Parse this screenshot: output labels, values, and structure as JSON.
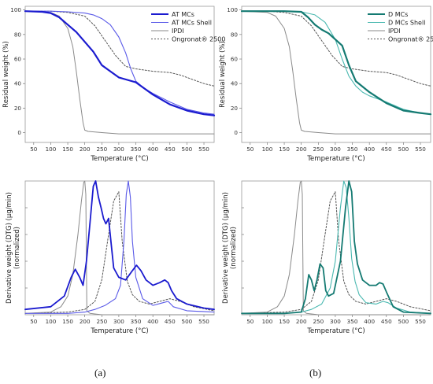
{
  "figure": {
    "label_a": "(a)",
    "label_b": "(b)"
  },
  "chart_data": [
    {
      "type": "line",
      "panel": "top-left",
      "xlabel": "Temperature (°C)",
      "ylabel": "Residual weight (%)",
      "xlim": [
        25,
        580
      ],
      "ylim": [
        -8,
        103
      ],
      "xticks": [
        50,
        100,
        150,
        200,
        250,
        300,
        350,
        400,
        450,
        500,
        550
      ],
      "yticks": [
        0,
        20,
        40,
        60,
        80,
        100
      ],
      "legend_position": "top-right",
      "series": [
        {
          "name": "AT MCs",
          "color": "#1b1bcf",
          "width": 2.2,
          "dash": "",
          "x": [
            25,
            75,
            100,
            125,
            150,
            175,
            200,
            225,
            250,
            275,
            300,
            325,
            350,
            400,
            450,
            500,
            550,
            580
          ],
          "y": [
            99,
            98.5,
            97.5,
            94,
            88,
            82,
            74,
            66,
            55,
            50,
            45,
            43,
            41,
            31,
            23,
            18,
            15,
            14
          ]
        },
        {
          "name": "AT MCs Shell",
          "color": "#5a5ae8",
          "width": 1.1,
          "dash": "",
          "x": [
            25,
            100,
            150,
            200,
            225,
            250,
            275,
            300,
            320,
            335,
            350,
            375,
            400,
            450,
            500,
            550,
            580
          ],
          "y": [
            99,
            99,
            98.5,
            97.5,
            96,
            93,
            88,
            78,
            65,
            52,
            42,
            36,
            32,
            25,
            19,
            16,
            15
          ]
        },
        {
          "name": "IPDI",
          "color": "#8a8a8a",
          "width": 1.0,
          "dash": "",
          "x": [
            25,
            100,
            125,
            150,
            165,
            175,
            185,
            195,
            200,
            210,
            250,
            300,
            400,
            500,
            580
          ],
          "y": [
            99,
            98,
            95,
            85,
            70,
            50,
            28,
            8,
            2,
            1,
            0,
            -1,
            -1,
            -1,
            -1
          ]
        },
        {
          "name": "Ongronat® 2500",
          "color": "#555555",
          "width": 1.0,
          "dash": "2,2",
          "x": [
            25,
            100,
            150,
            200,
            230,
            260,
            290,
            320,
            350,
            400,
            450,
            480,
            500,
            550,
            580
          ],
          "y": [
            99,
            99,
            98,
            95,
            87,
            75,
            63,
            54,
            52,
            50,
            49,
            47,
            45,
            40,
            38
          ]
        }
      ]
    },
    {
      "type": "line",
      "panel": "top-right",
      "xlabel": "Temperature (°C)",
      "ylabel": "Residual weight (%)",
      "xlim": [
        25,
        580
      ],
      "ylim": [
        -8,
        103
      ],
      "xticks": [
        50,
        100,
        150,
        200,
        250,
        300,
        350,
        400,
        450,
        500,
        550
      ],
      "yticks": [
        0,
        20,
        40,
        60,
        80,
        100
      ],
      "legend_position": "top-right",
      "series": [
        {
          "name": "D MCs",
          "color": "#147a72",
          "width": 2.2,
          "dash": "",
          "x": [
            25,
            100,
            150,
            200,
            220,
            240,
            260,
            280,
            300,
            320,
            340,
            360,
            400,
            450,
            500,
            550,
            580
          ],
          "y": [
            99,
            99,
            99,
            98.5,
            94,
            88,
            84,
            81,
            76,
            71,
            55,
            42,
            33,
            24,
            18,
            16,
            15
          ]
        },
        {
          "name": "D MCs Shell",
          "color": "#49b8b0",
          "width": 1.1,
          "dash": "",
          "x": [
            25,
            100,
            150,
            200,
            240,
            270,
            300,
            320,
            340,
            360,
            380,
            400,
            450,
            500,
            550,
            580
          ],
          "y": [
            99,
            99,
            99,
            98.5,
            96,
            90,
            76,
            60,
            46,
            38,
            33,
            30,
            25,
            19,
            16,
            15
          ]
        },
        {
          "name": "IPDI",
          "color": "#8a8a8a",
          "width": 1.0,
          "dash": "",
          "x": [
            25,
            100,
            125,
            150,
            165,
            175,
            185,
            195,
            200,
            210,
            250,
            300,
            400,
            500,
            580
          ],
          "y": [
            99,
            98,
            95,
            85,
            70,
            50,
            28,
            8,
            2,
            1,
            0,
            -1,
            -1,
            -1,
            -1
          ]
        },
        {
          "name": "Ongronat® 2500",
          "color": "#555555",
          "width": 1.0,
          "dash": "2,2",
          "x": [
            25,
            100,
            150,
            200,
            230,
            260,
            290,
            320,
            350,
            400,
            450,
            480,
            500,
            550,
            580
          ],
          "y": [
            99,
            99,
            98,
            95,
            87,
            75,
            63,
            54,
            52,
            50,
            49,
            47,
            45,
            40,
            38
          ]
        }
      ]
    },
    {
      "type": "line",
      "panel": "bottom-left",
      "xlabel": "Temperature (°C)",
      "ylabel": "Derivative weight (DTG) (µg/min)",
      "ylabel2": "(normalized)",
      "xlim": [
        25,
        580
      ],
      "ylim": [
        0,
        1
      ],
      "xticks": [
        50,
        100,
        150,
        200,
        250,
        300,
        350,
        400,
        450,
        500,
        550
      ],
      "series": [
        {
          "name": "AT MCs",
          "color": "#1b1bcf",
          "width": 1.8,
          "dash": "",
          "x": [
            25,
            100,
            140,
            160,
            172,
            185,
            195,
            205,
            215,
            225,
            232,
            240,
            248,
            255,
            262,
            270,
            278,
            285,
            300,
            320,
            340,
            352,
            365,
            380,
            400,
            420,
            435,
            445,
            455,
            470,
            500,
            550,
            580
          ],
          "y": [
            0.04,
            0.06,
            0.14,
            0.28,
            0.34,
            0.28,
            0.22,
            0.4,
            0.68,
            0.96,
            1.0,
            0.88,
            0.8,
            0.72,
            0.68,
            0.72,
            0.52,
            0.35,
            0.28,
            0.26,
            0.33,
            0.37,
            0.33,
            0.26,
            0.22,
            0.24,
            0.26,
            0.24,
            0.18,
            0.12,
            0.08,
            0.05,
            0.04
          ]
        },
        {
          "name": "AT MCs Shell",
          "color": "#5a5ae8",
          "width": 1.1,
          "dash": "",
          "x": [
            25,
            150,
            200,
            230,
            260,
            290,
            305,
            315,
            322,
            328,
            334,
            340,
            350,
            370,
            400,
            430,
            445,
            460,
            500,
            580
          ],
          "y": [
            0.01,
            0.01,
            0.02,
            0.04,
            0.07,
            0.12,
            0.22,
            0.55,
            0.9,
            1.0,
            0.88,
            0.55,
            0.28,
            0.12,
            0.07,
            0.09,
            0.1,
            0.06,
            0.03,
            0.02
          ]
        },
        {
          "name": "IPDI",
          "color": "#8a8a8a",
          "width": 1.0,
          "dash": "",
          "x": [
            25,
            100,
            130,
            150,
            165,
            180,
            190,
            197,
            200,
            203,
            206,
            215,
            250,
            580
          ],
          "y": [
            0.01,
            0.02,
            0.06,
            0.14,
            0.3,
            0.6,
            0.85,
            0.99,
            1.0,
            0.9,
            0.03,
            0.01,
            0.0,
            0.0
          ]
        },
        {
          "name": "Ongronat® 2500",
          "color": "#555555",
          "width": 1.0,
          "dash": "2,2",
          "x": [
            25,
            150,
            200,
            230,
            250,
            270,
            285,
            300,
            310,
            325,
            340,
            360,
            390,
            420,
            450,
            480,
            520,
            580
          ],
          "y": [
            0.01,
            0.02,
            0.04,
            0.1,
            0.26,
            0.6,
            0.85,
            0.92,
            0.55,
            0.25,
            0.15,
            0.1,
            0.08,
            0.1,
            0.12,
            0.1,
            0.06,
            0.03
          ]
        }
      ]
    },
    {
      "type": "line",
      "panel": "bottom-right",
      "xlabel": "Temperature (°C)",
      "ylabel": "Derivative weight (DTG) (µg/min)",
      "ylabel2": "(normalized)",
      "xlim": [
        25,
        580
      ],
      "ylim": [
        0,
        1
      ],
      "xticks": [
        50,
        100,
        150,
        200,
        250,
        300,
        350,
        400,
        450,
        500,
        550
      ],
      "series": [
        {
          "name": "D MCs",
          "color": "#147a72",
          "width": 1.8,
          "dash": "",
          "x": [
            25,
            150,
            200,
            212,
            222,
            230,
            238,
            246,
            255,
            264,
            272,
            280,
            295,
            315,
            330,
            340,
            348,
            356,
            365,
            380,
            400,
            420,
            430,
            440,
            452,
            470,
            500,
            580
          ],
          "y": [
            0.01,
            0.01,
            0.02,
            0.12,
            0.3,
            0.26,
            0.18,
            0.26,
            0.38,
            0.35,
            0.18,
            0.14,
            0.16,
            0.4,
            0.8,
            1.0,
            0.92,
            0.55,
            0.38,
            0.26,
            0.22,
            0.22,
            0.24,
            0.23,
            0.16,
            0.06,
            0.02,
            0.01
          ]
        },
        {
          "name": "D MCs Shell",
          "color": "#49b8b0",
          "width": 1.1,
          "dash": "",
          "x": [
            25,
            150,
            200,
            230,
            260,
            285,
            300,
            315,
            325,
            332,
            340,
            348,
            358,
            370,
            390,
            420,
            440,
            455,
            480,
            520,
            580
          ],
          "y": [
            0.01,
            0.01,
            0.02,
            0.04,
            0.08,
            0.2,
            0.4,
            0.8,
            1.0,
            0.95,
            0.72,
            0.42,
            0.25,
            0.15,
            0.09,
            0.08,
            0.1,
            0.09,
            0.05,
            0.02,
            0.01
          ]
        },
        {
          "name": "IPDI",
          "color": "#8a8a8a",
          "width": 1.0,
          "dash": "",
          "x": [
            25,
            100,
            130,
            150,
            165,
            180,
            190,
            197,
            200,
            203,
            206,
            215,
            250,
            580
          ],
          "y": [
            0.01,
            0.02,
            0.06,
            0.14,
            0.3,
            0.6,
            0.85,
            0.99,
            1.0,
            0.9,
            0.03,
            0.01,
            0.0,
            0.0
          ]
        },
        {
          "name": "Ongronat® 2500",
          "color": "#555555",
          "width": 1.0,
          "dash": "2,2",
          "x": [
            25,
            150,
            200,
            230,
            250,
            270,
            285,
            300,
            310,
            325,
            340,
            360,
            390,
            420,
            450,
            480,
            520,
            580
          ],
          "y": [
            0.01,
            0.02,
            0.04,
            0.1,
            0.26,
            0.6,
            0.85,
            0.92,
            0.55,
            0.25,
            0.15,
            0.1,
            0.08,
            0.1,
            0.12,
            0.1,
            0.06,
            0.03
          ]
        }
      ]
    }
  ]
}
